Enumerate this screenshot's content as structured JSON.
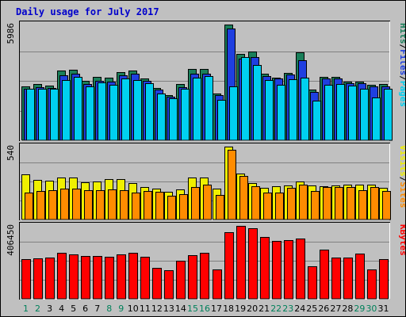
{
  "page": {
    "title": "Daily usage for July 2017"
  },
  "chart_data": [
    {
      "type": "bar",
      "name": "hits-files-pages",
      "categories": [
        "1",
        "2",
        "3",
        "4",
        "5",
        "6",
        "7",
        "8",
        "9",
        "10",
        "11",
        "12",
        "13",
        "14",
        "15",
        "16",
        "17",
        "18",
        "19",
        "20",
        "21",
        "22",
        "23",
        "24",
        "25",
        "26",
        "27",
        "28",
        "29",
        "30",
        "31"
      ],
      "ymax_label": "5986",
      "ylim": [
        0,
        5986
      ],
      "legend": [
        "Pages",
        "/",
        "Files",
        "/",
        "Hits"
      ],
      "series": [
        {
          "name": "Hits",
          "color": "#1a7f5a",
          "values": [
            2800,
            2893,
            2833,
            3620,
            3647,
            3057,
            3300,
            3245,
            3524,
            3598,
            3189,
            2722,
            2330,
            2897,
            3700,
            3709,
            2437,
            5986,
            4480,
            4580,
            3450,
            3250,
            3480,
            4550,
            2630,
            3300,
            3284,
            3042,
            3050,
            2863,
            2920
          ]
        },
        {
          "name": "Files",
          "color": "#1f3fe0",
          "values": [
            2680,
            2760,
            2720,
            3376,
            3428,
            2920,
            3090,
            3045,
            3358,
            3452,
            3073,
            2633,
            2271,
            2728,
            3454,
            3455,
            2325,
            5800,
            4230,
            4310,
            3330,
            3190,
            3400,
            4129,
            2510,
            3190,
            3185,
            2950,
            2954,
            2774,
            2770
          ]
        },
        {
          "name": "Pages",
          "color": "#00d0f0",
          "values": [
            2650,
            2650,
            2650,
            3120,
            3286,
            2803,
            2995,
            2860,
            3195,
            3110,
            2932,
            2420,
            2153,
            2657,
            3221,
            3302,
            2077,
            2787,
            4310,
            3895,
            3103,
            2866,
            3160,
            3236,
            2050,
            2876,
            2900,
            2846,
            2670,
            2199,
            2662
          ]
        }
      ]
    },
    {
      "type": "bar",
      "name": "visits-sites",
      "categories": [
        "1",
        "2",
        "3",
        "4",
        "5",
        "6",
        "7",
        "8",
        "9",
        "10",
        "11",
        "12",
        "13",
        "14",
        "15",
        "16",
        "17",
        "18",
        "19",
        "20",
        "21",
        "22",
        "23",
        "24",
        "25",
        "26",
        "27",
        "28",
        "29",
        "30",
        "31"
      ],
      "ymax_label": "540",
      "ylim": [
        0,
        540
      ],
      "legend": [
        "Sites",
        "/",
        "Visits"
      ],
      "series": [
        {
          "name": "Visits",
          "color": "#f0f000",
          "values": [
            332,
            294,
            288,
            313,
            310,
            274,
            280,
            302,
            302,
            270,
            238,
            231,
            208,
            222,
            310,
            312,
            230,
            540,
            340,
            269,
            235,
            247,
            255,
            282,
            250,
            244,
            250,
            256,
            256,
            256,
            235
          ]
        },
        {
          "name": "Sites",
          "color": "#ff8c00",
          "values": [
            200,
            212,
            217,
            231,
            230,
            217,
            220,
            224,
            220,
            200,
            212,
            208,
            175,
            190,
            240,
            256,
            180,
            518,
            320,
            249,
            200,
            200,
            233,
            256,
            212,
            241,
            241,
            241,
            220,
            241,
            210
          ]
        }
      ]
    },
    {
      "type": "bar",
      "name": "kbytes",
      "categories": [
        "1",
        "2",
        "3",
        "4",
        "5",
        "6",
        "7",
        "8",
        "9",
        "10",
        "11",
        "12",
        "13",
        "14",
        "15",
        "16",
        "17",
        "18",
        "19",
        "20",
        "21",
        "22",
        "23",
        "24",
        "25",
        "26",
        "27",
        "28",
        "29",
        "30",
        "31"
      ],
      "ymax_label": "406450",
      "ylim": [
        0,
        406450
      ],
      "legend": [
        "KBytes"
      ],
      "series": [
        {
          "name": "KBytes",
          "color": "#ff0000",
          "values": [
            222400,
            225900,
            227600,
            257100,
            249100,
            236500,
            240600,
            232900,
            245700,
            257100,
            235300,
            174100,
            160400,
            213600,
            243500,
            256200,
            165100,
            369200,
            406450,
            393800,
            344300,
            321700,
            327800,
            337000,
            180100,
            275700,
            231100,
            231400,
            252000,
            162500,
            218900
          ]
        }
      ]
    }
  ],
  "colors": {
    "frame_bg": "#c0c0c0",
    "plot_bg": "#c0c0c0",
    "grid": "#808080",
    "bar_outline": "#000000",
    "title": "#0000cc",
    "x_label_weekday": "#000000",
    "x_label_weekend": "#00805a"
  },
  "weekend_days": [
    "1",
    "2",
    "8",
    "9",
    "15",
    "16",
    "22",
    "23",
    "29",
    "30"
  ]
}
